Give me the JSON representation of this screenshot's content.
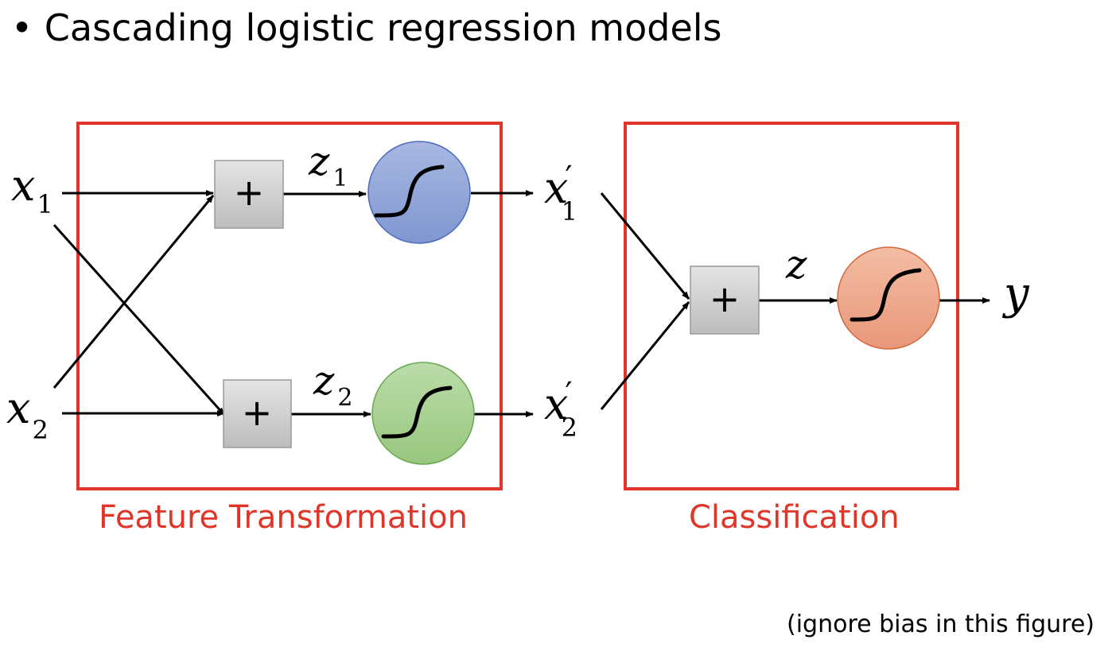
{
  "title": "• Cascading logistic regression models",
  "footnote": "(ignore bias in this figure)",
  "colors": {
    "frame": "#e0362a",
    "label": "#e0362a",
    "sum_box_fill": "#d2d2d2",
    "sum_box_stroke": "#9a9a9a",
    "neuron_blue": "#8fa3d6",
    "neuron_green": "#a6cf8f",
    "neuron_orange": "#eea88a"
  },
  "groups": {
    "feature": {
      "label": "Feature Transformation"
    },
    "classification": {
      "label": "Classification"
    }
  },
  "symbols": {
    "sum": "+",
    "x1": {
      "base": "x",
      "sub": "1"
    },
    "x2": {
      "base": "x",
      "sub": "2"
    },
    "z1": {
      "base": "z",
      "sub": "1"
    },
    "z2": {
      "base": "z",
      "sub": "2"
    },
    "x1p": {
      "base": "x",
      "prime": "′",
      "sub": "1"
    },
    "x2p": {
      "base": "x",
      "prime": "′",
      "sub": "2"
    },
    "z": {
      "base": "z"
    },
    "y": {
      "base": "y"
    }
  }
}
